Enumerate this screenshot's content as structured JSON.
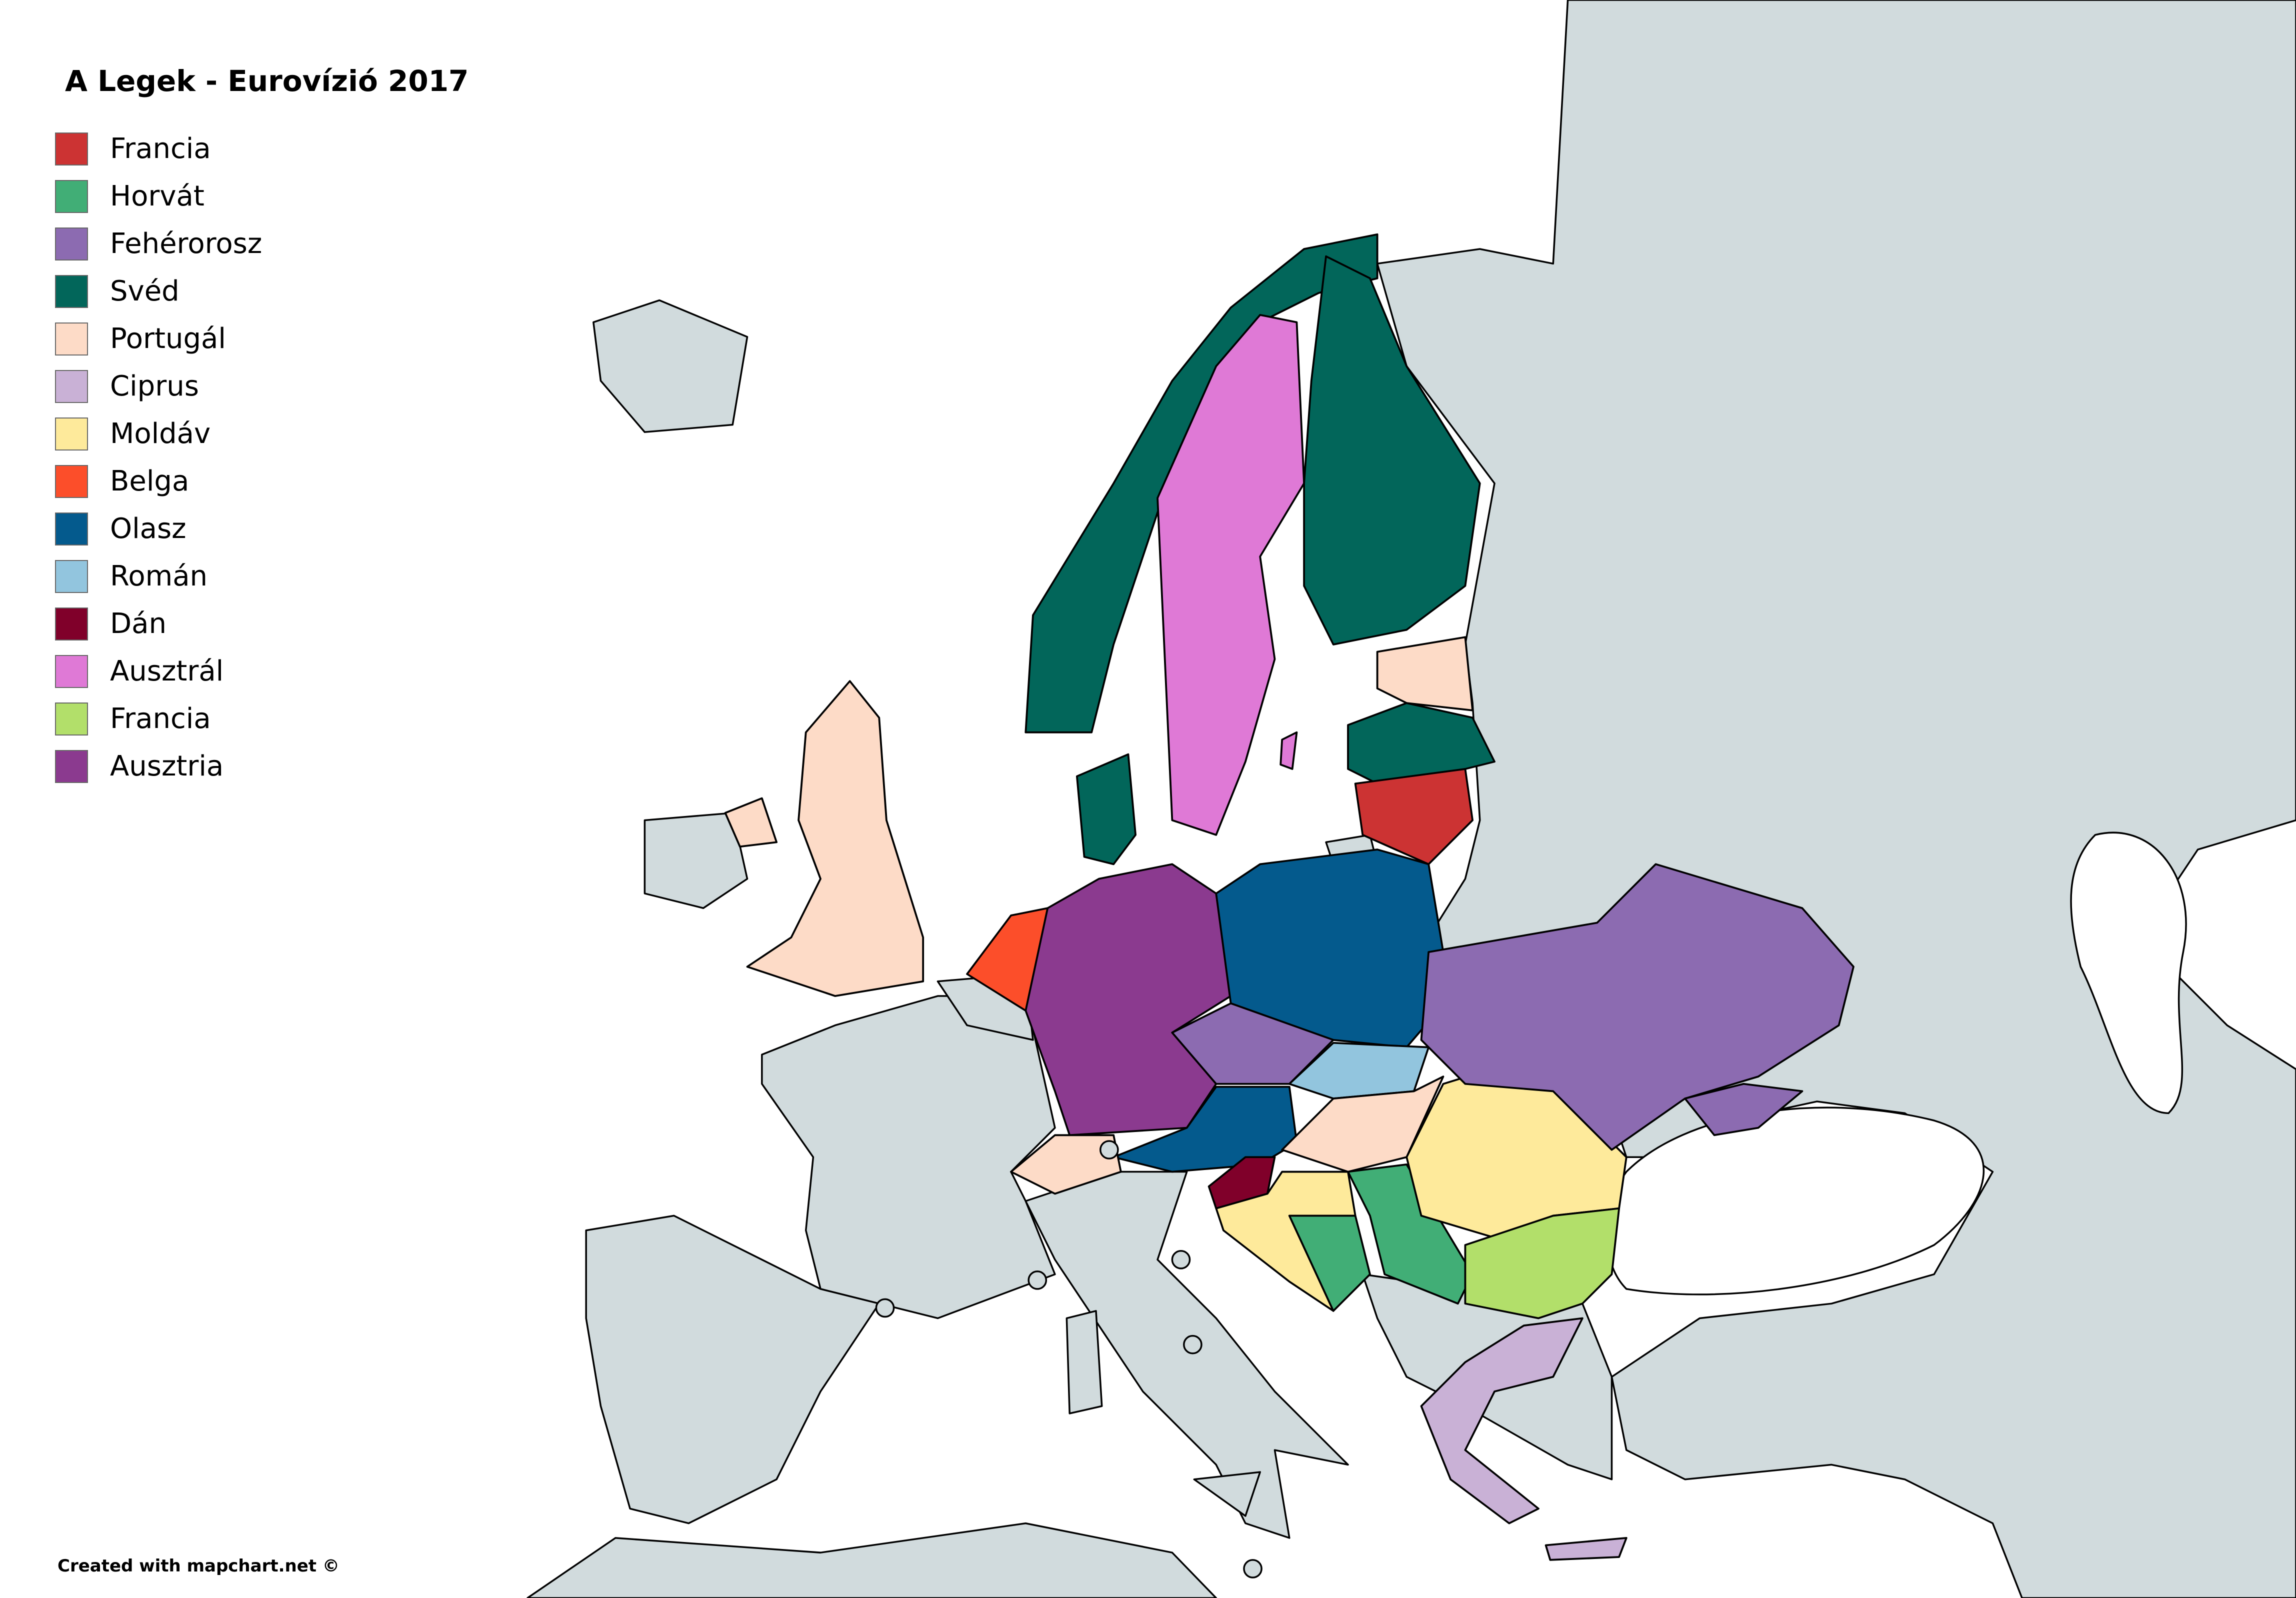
{
  "title": "A Legek - Eurovízió 2017",
  "legend": [
    {
      "label": "Francia",
      "color": "#cc3333"
    },
    {
      "label": "Horvát",
      "color": "#41ae76"
    },
    {
      "label": "Fehérorosz",
      "color": "#8c6bb1"
    },
    {
      "label": "Svéd",
      "color": "#02665a"
    },
    {
      "label": "Portugál",
      "color": "#fddbc7"
    },
    {
      "label": "Ciprus",
      "color": "#c9b1d6"
    },
    {
      "label": "Moldáv",
      "color": "#feea9b"
    },
    {
      "label": "Belga",
      "color": "#fc4e2a"
    },
    {
      "label": "Olasz",
      "color": "#045a8d"
    },
    {
      "label": "Román",
      "color": "#92c5de"
    },
    {
      "label": "Dán",
      "color": "#80002a"
    },
    {
      "label": "Ausztrál",
      "color": "#df79d6"
    },
    {
      "label": "Francia",
      "color": "#b2df6a"
    },
    {
      "label": "Ausztria",
      "color": "#8b3a8f"
    }
  ],
  "land_color": "#d1dbdd",
  "credit": "Created with mapchart.net ©"
}
